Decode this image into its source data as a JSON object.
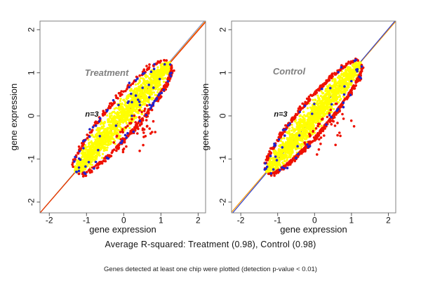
{
  "figure": {
    "subtitle": "Average R-squared: Treatment (0.98), Control (0.98)",
    "footnote": "Genes detected at least one chip were plotted (detection p-value < 0.01)"
  },
  "colors": {
    "core_points": "#ffff00",
    "outlier_points": "#ee1100",
    "minor_points": "#2222cc",
    "group_label": "#808080",
    "axis_box": "#808080",
    "axis_ticks": "#555555",
    "text": "#111111"
  },
  "chart_data": [
    {
      "type": "scatter",
      "group": "Treatment",
      "annotation": "n=3",
      "n_chips": 3,
      "r_squared": 0.98,
      "xlabel": "gene expression",
      "ylabel": "gene expression",
      "xlim": [
        -2.25,
        2.2
      ],
      "ylim": [
        -2.25,
        2.2
      ],
      "xticks": [
        -2,
        -1,
        0,
        1,
        2
      ],
      "yticks": [
        -2,
        -1,
        0,
        1,
        2
      ],
      "cloud": {
        "seed": 20240521,
        "center": -0.03,
        "half_length": 1.27,
        "max_spread": 0.52,
        "series": [
          {
            "name": "concordant-core",
            "color": "#ffff00",
            "n": 1650,
            "layer": "core",
            "r": 1.6
          },
          {
            "name": "outlier-fringe",
            "color": "#ee1100",
            "n": 400,
            "layer": "fringe",
            "r": 1.8,
            "below_fraction": 0.58
          },
          {
            "name": "outlier-spray",
            "color": "#ee1100",
            "n": 55,
            "layer": "spray",
            "r": 1.8
          },
          {
            "name": "minor-outliers",
            "color": "#2222cc",
            "n": 85,
            "layer": "fringe-mixed",
            "r": 1.8,
            "below_fraction": 0.55
          }
        ]
      },
      "diag_lines": [
        {
          "color": "#8892c4",
          "slope": 1.008,
          "intercept": 0.018
        },
        {
          "color": "#ff9800",
          "slope": 1.0,
          "intercept": 0.0
        },
        {
          "color": "#e53000",
          "slope": 0.996,
          "intercept": -0.012
        }
      ]
    },
    {
      "type": "scatter",
      "group": "Control",
      "annotation": "n=3",
      "n_chips": 3,
      "r_squared": 0.98,
      "xlabel": "gene expression",
      "ylabel": "gene expression",
      "xlim": [
        -2.25,
        2.2
      ],
      "ylim": [
        -2.25,
        2.2
      ],
      "xticks": [
        -2,
        -1,
        0,
        1,
        2
      ],
      "yticks": [
        -2,
        -1,
        0,
        1,
        2
      ],
      "cloud": {
        "seed": 77003,
        "center": -0.03,
        "half_length": 1.27,
        "max_spread": 0.46,
        "series": [
          {
            "name": "concordant-core",
            "color": "#ffff00",
            "n": 1650,
            "layer": "core",
            "r": 1.6
          },
          {
            "name": "outlier-fringe",
            "color": "#ee1100",
            "n": 540,
            "layer": "fringe",
            "r": 1.8,
            "below_fraction": 0.6
          },
          {
            "name": "outlier-spray",
            "color": "#ee1100",
            "n": 45,
            "layer": "spray",
            "r": 1.8
          },
          {
            "name": "minor-outliers",
            "color": "#2222cc",
            "n": 60,
            "layer": "fringe-mixed",
            "r": 1.8,
            "below_fraction": 0.55
          }
        ]
      },
      "diag_lines": [
        {
          "color": "#ff9800",
          "slope": 0.995,
          "intercept": 0.004
        },
        {
          "color": "#2e3ec8",
          "slope": 1.012,
          "intercept": -0.004
        }
      ]
    }
  ]
}
